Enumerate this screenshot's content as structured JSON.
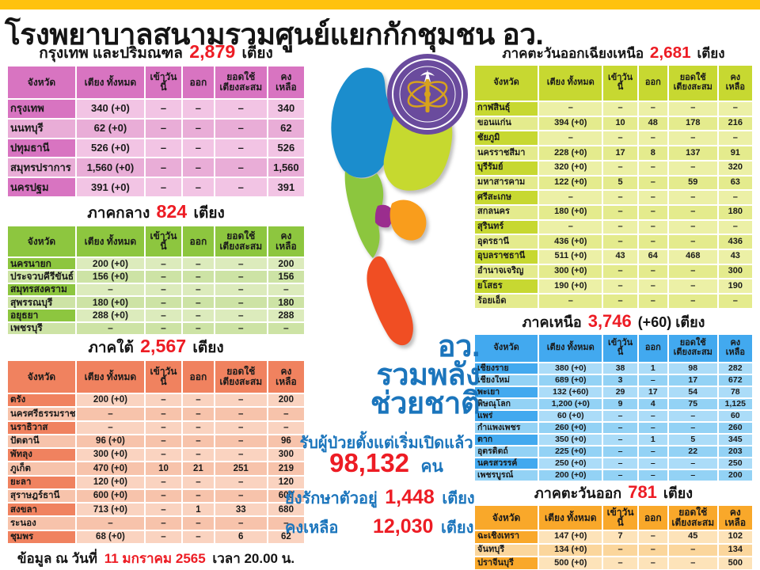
{
  "title": "โรงพยาบาลสนามรวมศูนย์แยกกักชุมชน อว.",
  "accent_colors": {
    "top_bar_yellow": "#ffc20e",
    "highlight_red": "#ed1c24",
    "slogan_blue": "#1b75bc"
  },
  "column_headers": [
    "จังหวัด",
    "เตียง ทั้งหมด",
    "เข้าวันนี้",
    "ออก",
    "ยอดใช้ เตียงสะสม",
    "คงเหลือ"
  ],
  "tables": [
    {
      "id": "bangkok-metro",
      "region": "กรุงเทพ และปริมณฑล",
      "total": "2,879",
      "extra": "",
      "unit": "เตียง",
      "theme_color": "#d874c1",
      "rows": [
        [
          "กรุงเทพ",
          "340 (+0)",
          "–",
          "–",
          "–",
          "340"
        ],
        [
          "นนทบุรี",
          "62 (+0)",
          "–",
          "–",
          "–",
          "62"
        ],
        [
          "ปทุมธานี",
          "526 (+0)",
          "–",
          "–",
          "–",
          "526"
        ],
        [
          "สมุทรปราการ",
          "1,560 (+0)",
          "–",
          "–",
          "–",
          "1,560"
        ],
        [
          "นครปฐม",
          "391 (+0)",
          "–",
          "–",
          "–",
          "391"
        ]
      ]
    },
    {
      "id": "central",
      "region": "ภาคกลาง",
      "total": "824",
      "extra": "",
      "unit": "เตียง",
      "theme_color": "#8dc63f",
      "rows": [
        [
          "นครนายก",
          "200 (+0)",
          "–",
          "–",
          "–",
          "200"
        ],
        [
          "ประจวบคีรีขันธ์",
          "156 (+0)",
          "–",
          "–",
          "–",
          "156"
        ],
        [
          "สมุทรสงคราม",
          "–",
          "–",
          "–",
          "–",
          "–"
        ],
        [
          "สุพรรณบุรี",
          "180 (+0)",
          "–",
          "–",
          "–",
          "180"
        ],
        [
          "อยุธยา",
          "288 (+0)",
          "–",
          "–",
          "–",
          "288"
        ],
        [
          "เพชรบุรี",
          "–",
          "–",
          "–",
          "–",
          "–"
        ]
      ]
    },
    {
      "id": "south",
      "region": "ภาคใต้",
      "total": "2,567",
      "extra": "",
      "unit": "เตียง",
      "theme_color": "#f0825f",
      "rows": [
        [
          "ตรัง",
          "200 (+0)",
          "–",
          "–",
          "–",
          "200"
        ],
        [
          "นครศรีธรรมราช",
          "–",
          "–",
          "–",
          "–",
          "–"
        ],
        [
          "นราธิวาส",
          "–",
          "–",
          "–",
          "–",
          "–"
        ],
        [
          "ปัตตานี",
          "96 (+0)",
          "–",
          "–",
          "–",
          "96"
        ],
        [
          "พัทลุง",
          "300 (+0)",
          "–",
          "–",
          "–",
          "300"
        ],
        [
          "ภูเก็ต",
          "470 (+0)",
          "10",
          "21",
          "251",
          "219"
        ],
        [
          "ยะลา",
          "120 (+0)",
          "–",
          "–",
          "–",
          "120"
        ],
        [
          "สุราษฎร์ธานี",
          "600 (+0)",
          "–",
          "–",
          "–",
          "600"
        ],
        [
          "สงขลา",
          "713 (+0)",
          "–",
          "1",
          "33",
          "680"
        ],
        [
          "ระนอง",
          "–",
          "–",
          "–",
          "–",
          "–"
        ],
        [
          "ชุมพร",
          "68 (+0)",
          "–",
          "–",
          "6",
          "62"
        ]
      ]
    },
    {
      "id": "northeast",
      "region": "ภาคตะวันออกเฉียงเหนือ",
      "total": "2,681",
      "extra": "",
      "unit": "เตียง",
      "theme_color": "#c7d831",
      "rows": [
        [
          "กาฬสินธุ์",
          "–",
          "–",
          "–",
          "–",
          "–"
        ],
        [
          "ขอนแก่น",
          "394 (+0)",
          "10",
          "48",
          "178",
          "216"
        ],
        [
          "ชัยภูมิ",
          "–",
          "–",
          "–",
          "–",
          "–"
        ],
        [
          "นครราชสีมา",
          "228 (+0)",
          "17",
          "8",
          "137",
          "91"
        ],
        [
          "บุรีรัมย์",
          "320 (+0)",
          "–",
          "–",
          "–",
          "320"
        ],
        [
          "มหาสารคาม",
          "122 (+0)",
          "5",
          "–",
          "59",
          "63"
        ],
        [
          "ศรีสะเกษ",
          "–",
          "–",
          "–",
          "–",
          "–"
        ],
        [
          "สกลนคร",
          "180 (+0)",
          "–",
          "–",
          "–",
          "180"
        ],
        [
          "สุรินทร์",
          "–",
          "–",
          "–",
          "–",
          "–"
        ],
        [
          "อุดรธานี",
          "436 (+0)",
          "–",
          "–",
          "–",
          "436"
        ],
        [
          "อุบลราชธานี",
          "511 (+0)",
          "43",
          "64",
          "468",
          "43"
        ],
        [
          "อำนาจเจริญ",
          "300 (+0)",
          "–",
          "–",
          "–",
          "300"
        ],
        [
          "ยโสธร",
          "190 (+0)",
          "–",
          "–",
          "–",
          "190"
        ],
        [
          "ร้อยเอ็ด",
          "–",
          "–",
          "–",
          "–",
          "–"
        ]
      ]
    },
    {
      "id": "north",
      "region": "ภาคเหนือ",
      "total": "3,746",
      "extra": "(+60)",
      "unit": "เตียง",
      "theme_color": "#42a9ef",
      "rows": [
        [
          "เชียงราย",
          "380 (+0)",
          "38",
          "1",
          "98",
          "282"
        ],
        [
          "เชียงใหม่",
          "689 (+0)",
          "3",
          "–",
          "17",
          "672"
        ],
        [
          "พะเยา",
          "132 (+60)",
          "29",
          "17",
          "54",
          "78"
        ],
        [
          "พิษณุโลก",
          "1,200 (+0)",
          "9",
          "4",
          "75",
          "1,125"
        ],
        [
          "แพร่",
          "60 (+0)",
          "–",
          "–",
          "–",
          "60"
        ],
        [
          "กำแพงเพชร",
          "260 (+0)",
          "–",
          "–",
          "–",
          "260"
        ],
        [
          "ตาก",
          "350 (+0)",
          "–",
          "1",
          "5",
          "345"
        ],
        [
          "อุตรดิตถ์",
          "225 (+0)",
          "–",
          "–",
          "22",
          "203"
        ],
        [
          "นครสวรรค์",
          "250 (+0)",
          "–",
          "–",
          "–",
          "250"
        ],
        [
          "เพชรบูรณ์",
          "200 (+0)",
          "–",
          "–",
          "–",
          "200"
        ]
      ]
    },
    {
      "id": "east",
      "region": "ภาคตะวันออก",
      "total": "781",
      "extra": "",
      "unit": "เตียง",
      "theme_color": "#f9a82a",
      "rows": [
        [
          "ฉะเชิงเทรา",
          "147 (+0)",
          "7",
          "–",
          "45",
          "102"
        ],
        [
          "จันทบุรี",
          "134 (+0)",
          "–",
          "–",
          "–",
          "134"
        ],
        [
          "ปราจีนบุรี",
          "500 (+0)",
          "–",
          "–",
          "–",
          "500"
        ]
      ]
    }
  ],
  "center": {
    "slogan": [
      "อว.",
      "รวมพลัง",
      "ช่วยชาติ"
    ],
    "admitted_label": "รับผู้ป่วยตั้งแต่เริ่มเปิดแล้ว",
    "admitted_value": "98,132",
    "admitted_unit": "คน",
    "treating_label": "ยังรักษาตัวอยู่",
    "treating_value": "1,448",
    "treating_unit": "เตียง",
    "remaining_label": "คงเหลือ",
    "remaining_value": "12,030",
    "remaining_unit": "เตียง"
  },
  "map": {
    "regions": [
      {
        "id": "north",
        "color": "#1b8dcd"
      },
      {
        "id": "northeast",
        "color": "#c6d92f"
      },
      {
        "id": "central",
        "color": "#8cc63e"
      },
      {
        "id": "bangkok",
        "color": "#9b2d8e"
      },
      {
        "id": "east",
        "color": "#f99d1c"
      },
      {
        "id": "south",
        "color": "#f04e23"
      }
    ]
  },
  "logo": {
    "circle_color": "#6a4b9d",
    "emblem_color": "#d7a21d"
  },
  "footer": {
    "prefix": "ข้อมูล ณ วันที่",
    "date": "11 มกราคม 2565",
    "suffix": "เวลา 20.00 น."
  }
}
